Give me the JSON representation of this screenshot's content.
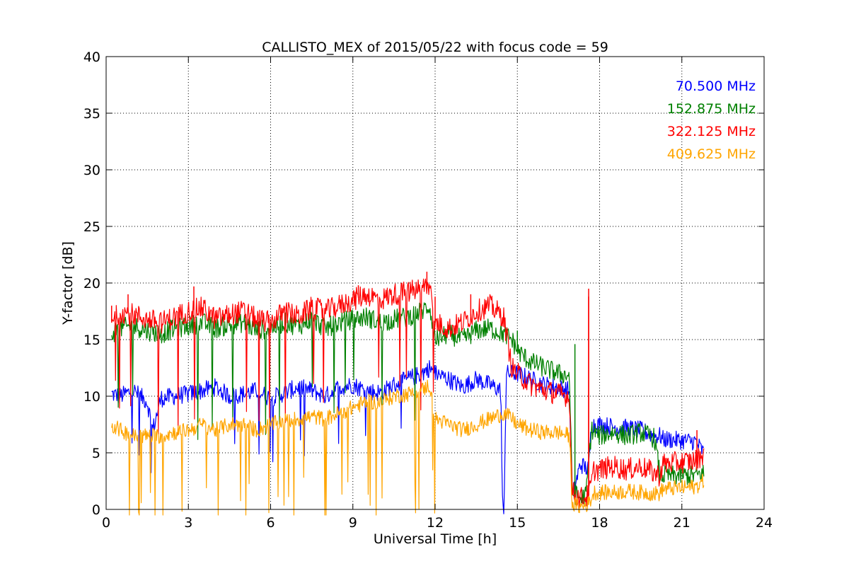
{
  "chart_data": {
    "type": "line",
    "title": "CALLISTO_MEX of 2015/05/22 with focus code = 59",
    "xlabel": "Universal Time [h]",
    "ylabel": "Y-factor [dB]",
    "xlim": [
      0,
      24
    ],
    "ylim": [
      0,
      40
    ],
    "xticks": [
      0,
      3,
      6,
      9,
      12,
      15,
      18,
      21,
      24
    ],
    "yticks": [
      0,
      5,
      10,
      15,
      20,
      25,
      30,
      35,
      40
    ],
    "grid": true,
    "legend_position": "top-right",
    "series": [
      {
        "name": "70.500 MHz",
        "color": "#0000ff",
        "noise": 0.8,
        "x": [
          0.2,
          0.5,
          1.0,
          1.5,
          1.7,
          2.0,
          2.5,
          3.0,
          3.5,
          4.0,
          4.5,
          5.0,
          5.5,
          6.0,
          6.5,
          7.0,
          7.5,
          8.0,
          8.5,
          9.0,
          9.5,
          10.0,
          10.5,
          11.0,
          11.5,
          11.8,
          12.0,
          12.5,
          13.0,
          13.5,
          14.0,
          14.4,
          14.45,
          14.5,
          14.6,
          15.0,
          15.5,
          16.0,
          16.5,
          16.9,
          17.0,
          17.3,
          17.6,
          17.7,
          18.0,
          18.5,
          19.0,
          19.5,
          20.0,
          20.2,
          20.3,
          21.5,
          21.8
        ],
        "y": [
          10.2,
          10.0,
          10.5,
          9.5,
          7.0,
          9.8,
          10.0,
          10.2,
          10.5,
          10.8,
          10.0,
          10.2,
          10.5,
          9.8,
          10.3,
          10.8,
          10.5,
          10.0,
          10.8,
          11.0,
          10.5,
          10.3,
          11.0,
          11.5,
          12.0,
          12.5,
          12.0,
          11.5,
          10.8,
          11.5,
          11.0,
          10.5,
          1.0,
          -1,
          12.0,
          12.0,
          11.5,
          11.0,
          10.8,
          10.5,
          1.0,
          4.0,
          3.5,
          7.5,
          7.5,
          7.3,
          7.2,
          7.0,
          6.5,
          6.5,
          6.2,
          6.0,
          5.0
        ]
      },
      {
        "name": "152.875 MHz",
        "color": "#008000",
        "noise": 0.9,
        "x": [
          0.2,
          0.5,
          1.0,
          1.5,
          2.0,
          2.5,
          3.0,
          3.5,
          4.0,
          4.5,
          5.0,
          5.5,
          6.0,
          6.5,
          7.0,
          7.5,
          8.0,
          8.5,
          9.0,
          9.5,
          10.0,
          10.5,
          11.0,
          11.5,
          11.8,
          12.0,
          12.5,
          13.0,
          13.5,
          14.0,
          14.5,
          14.8,
          15.0,
          15.5,
          16.0,
          16.5,
          16.9,
          17.0,
          17.3,
          17.5,
          17.7,
          18.0,
          18.5,
          19.0,
          19.5,
          20.0,
          20.2,
          20.3,
          21.5,
          21.8
        ],
        "y": [
          15.5,
          16.0,
          16.2,
          15.8,
          15.5,
          16.0,
          16.2,
          16.5,
          16.0,
          16.3,
          16.5,
          15.8,
          16.0,
          16.5,
          16.2,
          16.8,
          16.0,
          16.5,
          16.8,
          17.0,
          16.5,
          16.8,
          17.0,
          17.5,
          18.0,
          15.0,
          15.5,
          15.0,
          15.8,
          16.0,
          15.5,
          15.0,
          14.0,
          13.0,
          12.5,
          12.0,
          11.8,
          1.5,
          1.0,
          1.2,
          7.0,
          6.5,
          6.8,
          6.5,
          6.8,
          6.3,
          3.0,
          3.0,
          3.0,
          3.2
        ]
      },
      {
        "name": "322.125 MHz",
        "color": "#ff0000",
        "noise": 1.0,
        "x": [
          0.2,
          0.5,
          1.0,
          1.5,
          2.0,
          2.5,
          3.0,
          3.5,
          4.0,
          4.5,
          5.0,
          5.5,
          6.0,
          6.5,
          7.0,
          7.5,
          8.0,
          8.5,
          9.0,
          9.5,
          10.0,
          10.5,
          11.0,
          11.5,
          11.8,
          12.0,
          12.5,
          13.0,
          13.5,
          14.0,
          14.5,
          14.8,
          15.0,
          15.5,
          16.0,
          16.5,
          16.9,
          17.0,
          17.3,
          17.6,
          17.8,
          18.0,
          18.5,
          19.0,
          19.5,
          20.0,
          20.2,
          20.3,
          21.5,
          21.8
        ],
        "y": [
          16.5,
          17.5,
          17.2,
          16.8,
          16.5,
          17.0,
          17.5,
          17.8,
          16.8,
          17.2,
          17.5,
          16.8,
          16.5,
          17.5,
          17.0,
          17.8,
          17.5,
          18.0,
          18.5,
          19.0,
          18.5,
          19.0,
          19.2,
          19.5,
          19.8,
          16.5,
          16.0,
          16.5,
          17.5,
          18.0,
          17.0,
          12.5,
          12.0,
          11.0,
          10.5,
          10.2,
          10.0,
          1.5,
          1.0,
          1.2,
          3.5,
          3.5,
          3.8,
          3.5,
          3.8,
          3.2,
          3.0,
          4.0,
          4.3,
          5.0
        ]
      },
      {
        "name": "409.625 MHz",
        "color": "#ffa500",
        "noise": 0.7,
        "x": [
          0.2,
          0.5,
          1.0,
          1.5,
          2.0,
          2.5,
          3.0,
          3.5,
          4.0,
          4.5,
          5.0,
          5.5,
          6.0,
          6.5,
          7.0,
          7.5,
          8.0,
          8.5,
          9.0,
          9.5,
          10.0,
          10.5,
          11.0,
          11.5,
          11.8,
          12.0,
          12.5,
          13.0,
          13.5,
          14.0,
          14.5,
          14.8,
          15.0,
          15.5,
          16.0,
          16.5,
          16.9,
          17.0,
          17.3,
          17.6,
          17.8,
          18.0,
          18.5,
          19.0,
          19.5,
          20.0,
          20.2,
          20.3,
          21.5,
          21.8
        ],
        "y": [
          7.5,
          7.0,
          6.5,
          6.5,
          6.5,
          6.8,
          7.0,
          7.5,
          7.0,
          7.5,
          7.5,
          7.0,
          7.5,
          7.8,
          8.0,
          8.2,
          8.0,
          8.5,
          9.0,
          9.5,
          9.5,
          10.0,
          10.2,
          10.5,
          11.0,
          8.0,
          7.5,
          7.0,
          7.5,
          8.0,
          8.5,
          8.0,
          7.5,
          7.0,
          6.8,
          6.8,
          6.5,
          0.5,
          0.2,
          0.5,
          1.5,
          1.5,
          1.5,
          1.6,
          1.5,
          1.4,
          1.4,
          1.8,
          2.0,
          2.5
        ]
      }
    ],
    "annotations": [
      {
        "x": 0.2,
        "y": 18.0,
        "series": 2
      },
      {
        "x": 0.8,
        "y": 19.0,
        "series": 2
      },
      {
        "x": 3.2,
        "y": 19.7,
        "series": 2
      },
      {
        "x": 9.2,
        "y": 19.8,
        "series": 2
      },
      {
        "x": 11.7,
        "y": 21.0,
        "series": 2
      },
      {
        "x": 12.0,
        "y": 18.8,
        "series": 2
      },
      {
        "x": 13.3,
        "y": 19.0,
        "series": 2
      },
      {
        "x": 15.0,
        "y": 15.8,
        "series": 1
      },
      {
        "x": 17.1,
        "y": 14.6,
        "series": 1
      },
      {
        "x": 17.6,
        "y": 19.5,
        "series": 2
      },
      {
        "x": 17.6,
        "y": 18.8,
        "series": 2
      },
      {
        "x": 21.55,
        "y": 7.0,
        "series": 2
      }
    ]
  }
}
